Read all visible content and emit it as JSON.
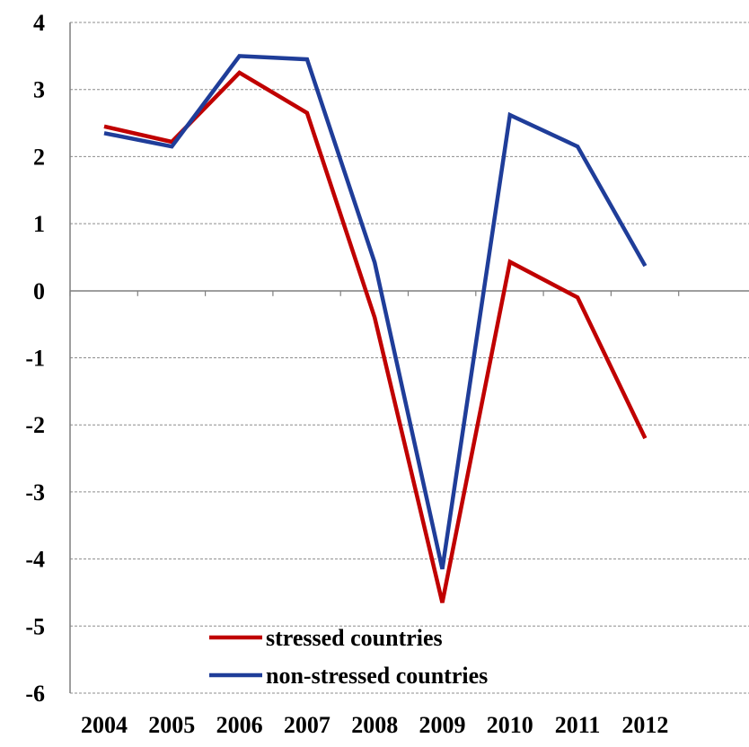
{
  "chart_data": {
    "type": "line",
    "title": "",
    "xlabel": "",
    "ylabel": "",
    "categories": [
      "2004",
      "2005",
      "2006",
      "2007",
      "2008",
      "2009",
      "2010",
      "2011",
      "2012"
    ],
    "ylim": [
      -6,
      4
    ],
    "yticks": [
      "4",
      "3",
      "2",
      "1",
      "0",
      "-1",
      "-2",
      "-3",
      "-4",
      "-5",
      "-6"
    ],
    "grid": "horizontal dashed",
    "legend_position": "bottom-center",
    "series": [
      {
        "name": "stressed countries",
        "color": "#c00000",
        "values": [
          2.45,
          2.22,
          3.25,
          2.65,
          -0.4,
          -4.65,
          0.43,
          -0.1,
          -2.2
        ]
      },
      {
        "name": "non-stressed countries",
        "color": "#1f3d99",
        "values": [
          2.35,
          2.15,
          3.5,
          3.45,
          0.42,
          -4.15,
          2.62,
          2.15,
          0.37
        ]
      }
    ]
  }
}
